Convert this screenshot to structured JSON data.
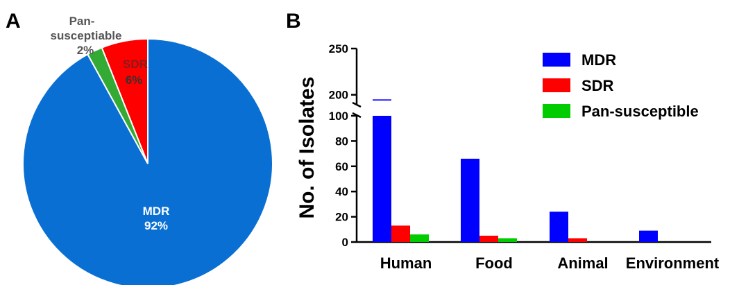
{
  "panels": {
    "a_label": "A",
    "b_label": "B"
  },
  "chart_data": [
    {
      "type": "pie",
      "slices": [
        {
          "label": "MDR",
          "percent_label": "92%",
          "value": 92,
          "color": "#0A6FD3"
        },
        {
          "label": "Pan-\nsusceptiable",
          "percent_label": "2%",
          "value": 2,
          "color": "#33AA33"
        },
        {
          "label": "SDR",
          "percent_label": "6%",
          "value": 6,
          "color": "#FF0000"
        }
      ]
    },
    {
      "type": "bar",
      "title": "",
      "xlabel": "",
      "ylabel": "No. of Isolates",
      "categories": [
        "Human",
        "Food",
        "Animal",
        "Environment"
      ],
      "series": [
        {
          "name": "MDR",
          "color": "#0000FF",
          "values": [
            195,
            66,
            24,
            9
          ]
        },
        {
          "name": "SDR",
          "color": "#FF0000",
          "values": [
            13,
            5,
            3,
            0
          ]
        },
        {
          "name": "Pan-susceptible",
          "color": "#00CC00",
          "values": [
            6,
            3,
            0,
            0
          ]
        }
      ],
      "y_axis_lower": {
        "range": [
          0,
          100
        ],
        "ticks": [
          "0",
          "20",
          "40",
          "60",
          "80",
          "100"
        ]
      },
      "y_axis_upper": {
        "range": [
          190,
          250
        ],
        "ticks": [
          "200",
          "250"
        ]
      },
      "axis_break": true,
      "grid": false,
      "legend_position": "top-right"
    }
  ]
}
